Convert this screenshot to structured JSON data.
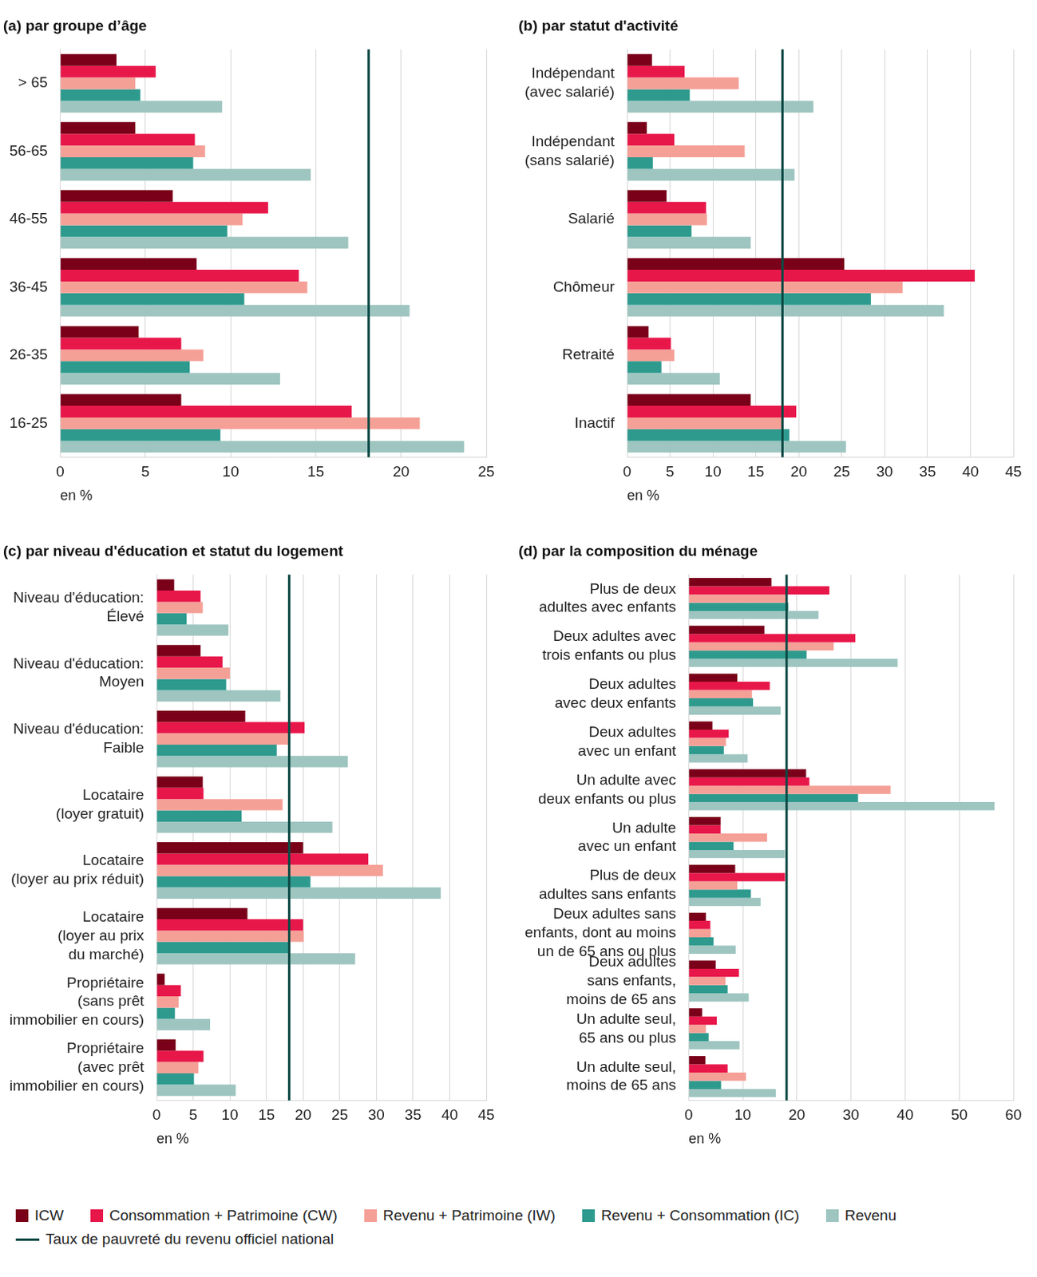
{
  "chart_data": [
    {
      "type": "bar",
      "orientation": "horizontal",
      "title": "(a) par groupe d’âge",
      "xlabel": "en %",
      "grid": true,
      "legend": "bottom",
      "categories": [
        "> 65",
        "56-65",
        "46-55",
        "36-45",
        "26-35",
        "16-25"
      ],
      "series": [
        {
          "name": "ICW",
          "color": "#7a0019",
          "values": [
            3.3,
            4.4,
            6.6,
            8.0,
            4.6,
            7.1
          ]
        },
        {
          "name": "Consommation + Patrimoine (CW)",
          "color": "#e8174a",
          "values": [
            5.6,
            7.9,
            12.2,
            14.0,
            7.1,
            17.1
          ]
        },
        {
          "name": "Revenu + Patrimoine (IW)",
          "color": "#f5a097",
          "values": [
            4.4,
            8.5,
            10.7,
            14.5,
            8.4,
            21.1
          ]
        },
        {
          "name": "Revenu + Consommation (IC)",
          "color": "#2e9a8e",
          "values": [
            4.7,
            7.8,
            9.8,
            10.8,
            7.6,
            9.4
          ]
        },
        {
          "name": "Revenu",
          "color": "#9ec5c0",
          "values": [
            9.5,
            14.7,
            16.9,
            20.5,
            12.9,
            23.7
          ]
        }
      ],
      "reference_line": {
        "name": "Taux de pauvreté du revenu officiel national",
        "value": 18.1,
        "color": "#0d4a45"
      },
      "xlim": [
        0,
        25
      ],
      "xticks": [
        0,
        5,
        10,
        15,
        20,
        25
      ]
    },
    {
      "type": "bar",
      "orientation": "horizontal",
      "title": "(b) par statut d'activité",
      "xlabel": "en %",
      "grid": true,
      "categories": [
        [
          "Indépendant",
          "(avec salarié)"
        ],
        [
          "Indépendant",
          "(sans salarié)"
        ],
        "Salarié",
        "Chômeur",
        "Retraité",
        "Inactif"
      ],
      "series": [
        {
          "name": "ICW",
          "color": "#7a0019",
          "values": [
            2.9,
            2.3,
            4.6,
            25.3,
            2.5,
            14.4
          ]
        },
        {
          "name": "Consommation + Patrimoine (CW)",
          "color": "#e8174a",
          "values": [
            6.7,
            5.5,
            9.2,
            40.5,
            5.1,
            19.7
          ]
        },
        {
          "name": "Revenu + Patrimoine (IW)",
          "color": "#f5a097",
          "values": [
            13.0,
            13.7,
            9.3,
            32.1,
            5.5,
            18.0
          ]
        },
        {
          "name": "Revenu + Consommation (IC)",
          "color": "#2e9a8e",
          "values": [
            7.3,
            3.0,
            7.5,
            28.4,
            4.0,
            18.9
          ]
        },
        {
          "name": "Revenu",
          "color": "#9ec5c0",
          "values": [
            21.7,
            19.5,
            14.4,
            36.9,
            10.8,
            25.5
          ]
        }
      ],
      "reference_line": {
        "name": "Taux de pauvreté du revenu officiel national",
        "value": 18.1,
        "color": "#0d4a45"
      },
      "xlim": [
        0,
        45
      ],
      "xticks": [
        0,
        5,
        10,
        15,
        20,
        25,
        30,
        35,
        40,
        45
      ]
    },
    {
      "type": "bar",
      "orientation": "horizontal",
      "title": "(c) par niveau d'éducation et statut du logement",
      "xlabel": "en %",
      "grid": true,
      "categories": [
        [
          "Niveau d'éducation:",
          "Élevé"
        ],
        [
          "Niveau d'éducation:",
          "Moyen"
        ],
        [
          "Niveau d'éducation:",
          "Faible"
        ],
        [
          "Locataire",
          "(loyer gratuit)"
        ],
        [
          "Locataire",
          "(loyer au prix réduit)"
        ],
        [
          "Locataire",
          "(loyer au prix",
          "du marché)"
        ],
        [
          "Propriétaire",
          "(sans prêt",
          "immobilier en cours)"
        ],
        [
          "Propriétaire",
          "(avec prêt",
          "immobilier en cours)"
        ]
      ],
      "series": [
        {
          "name": "ICW",
          "color": "#7a0019",
          "values": [
            2.4,
            6.0,
            12.1,
            6.3,
            20.0,
            12.4,
            1.1,
            2.6
          ]
        },
        {
          "name": "Consommation + Patrimoine (CW)",
          "color": "#e8174a",
          "values": [
            6.0,
            9.0,
            20.2,
            6.4,
            28.9,
            20.0,
            3.3,
            6.4
          ]
        },
        {
          "name": "Revenu + Patrimoine (IW)",
          "color": "#f5a097",
          "values": [
            6.3,
            10.0,
            18.0,
            17.2,
            30.9,
            20.1,
            3.0,
            5.7
          ]
        },
        {
          "name": "Revenu + Consommation (IC)",
          "color": "#2e9a8e",
          "values": [
            4.1,
            9.5,
            16.4,
            11.6,
            21.0,
            18.0,
            2.5,
            5.1
          ]
        },
        {
          "name": "Revenu",
          "color": "#9ec5c0",
          "values": [
            9.8,
            16.9,
            26.1,
            24.0,
            38.8,
            27.1,
            7.3,
            10.8
          ]
        }
      ],
      "reference_line": {
        "name": "Taux de pauvreté du revenu officiel national",
        "value": 18.1,
        "color": "#0d4a45"
      },
      "xlim": [
        0,
        45
      ],
      "xticks": [
        0,
        5,
        10,
        15,
        20,
        25,
        30,
        35,
        40,
        45
      ]
    },
    {
      "type": "bar",
      "orientation": "horizontal",
      "title": "(d) par la composition du ménage",
      "xlabel": "en %",
      "grid": true,
      "categories": [
        [
          "Plus de deux",
          "adultes avec enfants"
        ],
        [
          "Deux adultes avec",
          "trois enfants ou plus"
        ],
        [
          "Deux adultes",
          "avec deux enfants"
        ],
        [
          "Deux adultes",
          "avec un enfant"
        ],
        [
          "Un adulte avec",
          "deux enfants ou plus"
        ],
        [
          "Un adulte",
          "avec un enfant"
        ],
        [
          "Plus de deux",
          "adultes sans enfants"
        ],
        [
          "Deux adultes sans",
          "enfants, dont au moins",
          "un de 65 ans ou plus"
        ],
        [
          "Deux adultes",
          "sans enfants,",
          "moins de 65 ans"
        ],
        [
          "Un adulte seul,",
          "65 ans ou plus"
        ],
        [
          "Un adulte seul,",
          "moins de 65 ans"
        ]
      ],
      "series": [
        {
          "name": "ICW",
          "color": "#7a0019",
          "values": [
            15.3,
            14.0,
            9.0,
            4.4,
            21.7,
            5.9,
            8.6,
            3.2,
            5.0,
            2.5,
            3.1
          ]
        },
        {
          "name": "Consommation + Patrimoine (CW)",
          "color": "#e8174a",
          "values": [
            26.0,
            30.8,
            15.0,
            7.4,
            22.3,
            5.9,
            17.8,
            4.0,
            9.3,
            5.2,
            7.2
          ]
        },
        {
          "name": "Revenu + Patrimoine (IW)",
          "color": "#f5a097",
          "values": [
            18.0,
            26.8,
            11.7,
            6.9,
            37.3,
            14.5,
            9.0,
            4.1,
            6.8,
            3.2,
            10.6
          ]
        },
        {
          "name": "Revenu + Consommation (IC)",
          "color": "#2e9a8e",
          "values": [
            18.4,
            21.8,
            11.9,
            6.5,
            31.3,
            8.3,
            11.5,
            4.6,
            7.2,
            3.7,
            6.0
          ]
        },
        {
          "name": "Revenu",
          "color": "#9ec5c0",
          "values": [
            24.0,
            38.6,
            17.0,
            10.9,
            56.5,
            17.8,
            13.3,
            8.7,
            11.1,
            9.4,
            16.1
          ]
        }
      ],
      "reference_line": {
        "name": "Taux de pauvreté du revenu officiel national",
        "value": 18.1,
        "color": "#0d4a45"
      },
      "xlim": [
        0,
        60
      ],
      "xticks": [
        0,
        10,
        20,
        30,
        40,
        50,
        60
      ]
    }
  ]
}
